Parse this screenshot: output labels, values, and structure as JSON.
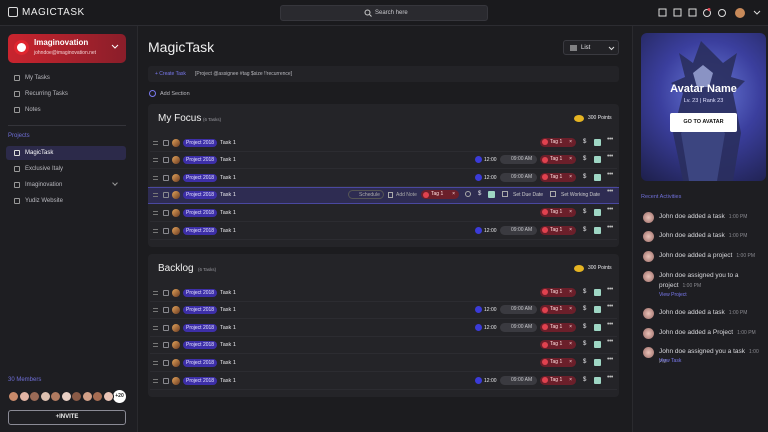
{
  "topbar": {
    "logo": "MAGICTASK",
    "search": "Search here"
  },
  "sidebar": {
    "workspace": "Imaginovation",
    "email": "johndoe@imaginovation.net",
    "nav": [
      "My Tasks",
      "Recurring Tasks",
      "Notes"
    ],
    "projects_label": "Projects",
    "projects": [
      "MagicTask",
      "Exclusive Italy",
      "Imaginovation",
      "Yudiz Website"
    ],
    "members_label": "30 Members",
    "members_more": "+20",
    "invite": "+INVITE"
  },
  "main": {
    "title": "MagicTask",
    "view": "List",
    "create_task": "+ Create Task",
    "create_hint": "[Project @assignee #tag $size !!recurrence]",
    "add_section": "Add Section",
    "sections": [
      {
        "name": "My Focus",
        "count": "(6 Tasks)",
        "points": "300 Points",
        "rows": [
          {
            "project": "Project 2018",
            "task": "Task 1",
            "tag": "Tag 1",
            "size": "$"
          },
          {
            "project": "Project 2018",
            "task": "Task 1",
            "time": "12:00",
            "due": "09:00 AM",
            "tag": "Tag 1",
            "size": "$"
          },
          {
            "project": "Project 2018",
            "task": "Task 1",
            "time": "12:00",
            "due": "09:00 AM",
            "tag": "Tag 1",
            "size": "$"
          },
          {
            "project": "Project 2018",
            "task": "Task 1",
            "schedule": "Schedule",
            "add_note": "Add Note",
            "tag": "Tag 1",
            "size": "$",
            "due_action": "Set Due Date",
            "working_action": "Set Working Date"
          },
          {
            "project": "Project 2018",
            "task": "Task 1",
            "tag": "Tag 1",
            "size": "$"
          },
          {
            "project": "Project 2018",
            "task": "Task 1",
            "time": "12:00",
            "due": "09:00 AM",
            "tag": "Tag 1",
            "size": "$"
          }
        ]
      },
      {
        "name": "Backlog",
        "count": "(6 Tasks)",
        "points": "300 Points",
        "rows": [
          {
            "project": "Project 2018",
            "task": "Task 1",
            "tag": "Tag 1",
            "size": "$"
          },
          {
            "project": "Project 2018",
            "task": "Task 1",
            "time": "12:00",
            "due": "09:00 AM",
            "tag": "Tag 1",
            "size": "$"
          },
          {
            "project": "Project 2018",
            "task": "Task 1",
            "time": "12:00",
            "due": "09:00 AM",
            "tag": "Tag 1",
            "size": "$"
          },
          {
            "project": "Project 2018",
            "task": "Task 1",
            "tag": "Tag 1",
            "size": "$"
          },
          {
            "project": "Project 2018",
            "task": "Task 1",
            "tag": "Tag 1",
            "size": "$"
          },
          {
            "project": "Project 2018",
            "task": "Task 1",
            "time": "12:00",
            "due": "09:00 AM",
            "tag": "Tag 1",
            "size": "$"
          }
        ]
      }
    ]
  },
  "right": {
    "avatar_name": "Avatar Name",
    "avatar_level": "Lv. 23 | Rank 23",
    "avatar_button": "GO TO AVATAR",
    "activities_label": "Recent Activities",
    "activities": [
      {
        "text": "John doe added a task",
        "time": "1:00 PM"
      },
      {
        "text": "John doe added a task",
        "time": "1:00 PM"
      },
      {
        "text": "John doe added a project",
        "time": "1:00 PM"
      },
      {
        "text": "John doe assigned you to a project",
        "time": "1:00 PM",
        "link": "View Project"
      },
      {
        "text": "John doe added a task",
        "time": "1:00 PM"
      },
      {
        "text": "John doe added a Project",
        "time": "1:00 PM"
      },
      {
        "text": "John doe assigned you a task",
        "time": "1:00 PM",
        "link": "View Task"
      }
    ]
  }
}
